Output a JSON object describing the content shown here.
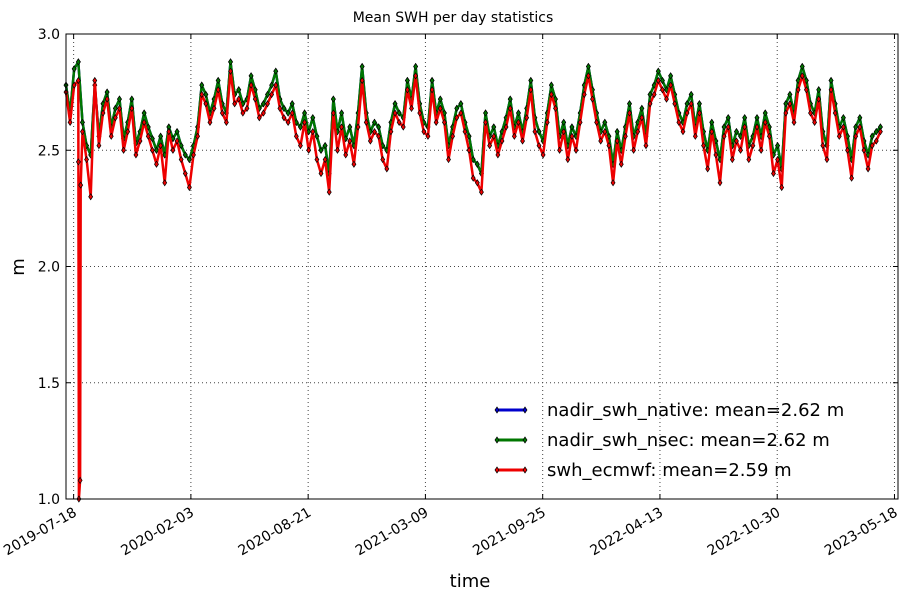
{
  "chart_data": {
    "type": "line",
    "title": "Mean SWH per day statistics",
    "xlabel": "time",
    "ylabel": "m",
    "x_range": [
      "2019-07-18",
      "2023-05-18"
    ],
    "ylim": [
      1.0,
      3.0
    ],
    "y_ticks": [
      "1.0",
      "1.5",
      "2.0",
      "2.5",
      "3.0"
    ],
    "x_ticks": [
      "2019-07-18",
      "2020-02-03",
      "2020-08-21",
      "2021-03-09",
      "2021-09-25",
      "2022-04-13",
      "2022-10-30",
      "2023-05-18"
    ],
    "grid": true,
    "legend_position": "lower-right",
    "x_start": "2019-07-05",
    "x_end": "2023-04-24",
    "series": [
      {
        "name": "nadir_swh_native: mean=2.62 m",
        "color": "#0000cc",
        "offset": 0.03,
        "values": [
          2.78,
          2.66,
          2.85,
          2.88,
          2.62,
          2.52,
          2.48,
          2.78,
          2.56,
          2.7,
          2.75,
          2.6,
          2.68,
          2.72,
          2.55,
          2.62,
          2.72,
          2.53,
          2.58,
          2.66,
          2.6,
          2.55,
          2.5,
          2.56,
          2.48,
          2.6,
          2.55,
          2.58,
          2.52,
          2.48,
          2.46,
          2.52,
          2.6,
          2.78,
          2.74,
          2.66,
          2.72,
          2.8,
          2.7,
          2.66,
          2.88,
          2.74,
          2.76,
          2.7,
          2.72,
          2.82,
          2.76,
          2.68,
          2.7,
          2.74,
          2.78,
          2.84,
          2.72,
          2.68,
          2.66,
          2.7,
          2.62,
          2.6,
          2.66,
          2.58,
          2.64,
          2.56,
          2.5,
          2.52,
          2.4,
          2.72,
          2.58,
          2.66,
          2.55,
          2.6,
          2.52,
          2.66,
          2.86,
          2.66,
          2.58,
          2.62,
          2.6,
          2.52,
          2.5,
          2.62,
          2.7,
          2.66,
          2.64,
          2.8,
          2.72,
          2.86,
          2.7,
          2.62,
          2.6,
          2.8,
          2.66,
          2.72,
          2.66,
          2.52,
          2.6,
          2.68,
          2.7,
          2.62,
          2.56,
          2.46,
          2.44,
          2.4,
          2.66,
          2.56,
          2.6,
          2.52,
          2.58,
          2.64,
          2.72,
          2.6,
          2.66,
          2.58,
          2.68,
          2.8,
          2.64,
          2.58,
          2.54,
          2.66,
          2.78,
          2.72,
          2.56,
          2.62,
          2.52,
          2.6,
          2.56,
          2.66,
          2.78,
          2.86,
          2.76,
          2.66,
          2.58,
          2.62,
          2.56,
          2.44,
          2.58,
          2.5,
          2.6,
          2.7,
          2.56,
          2.62,
          2.68,
          2.56,
          2.74,
          2.78,
          2.84,
          2.8,
          2.76,
          2.82,
          2.74,
          2.66,
          2.62,
          2.7,
          2.74,
          2.6,
          2.7,
          2.58,
          2.5,
          2.62,
          2.54,
          2.46,
          2.6,
          2.64,
          2.52,
          2.58,
          2.56,
          2.64,
          2.52,
          2.56,
          2.64,
          2.56,
          2.66,
          2.6,
          2.48,
          2.52,
          2.42,
          2.7,
          2.74,
          2.66,
          2.8,
          2.86,
          2.8,
          2.7,
          2.66,
          2.76,
          2.58,
          2.52,
          2.8,
          2.7,
          2.6,
          2.64,
          2.56,
          2.46,
          2.6,
          2.64,
          2.54,
          2.48,
          2.56,
          2.58,
          2.6
        ]
      },
      {
        "name": "nadir_swh_nsec: mean=2.62 m",
        "color": "#007700",
        "offset": 0.05,
        "values": [
          2.78,
          2.66,
          2.85,
          2.88,
          2.62,
          2.52,
          2.48,
          2.78,
          2.56,
          2.7,
          2.75,
          2.6,
          2.68,
          2.72,
          2.55,
          2.62,
          2.72,
          2.53,
          2.58,
          2.66,
          2.6,
          2.55,
          2.5,
          2.56,
          2.48,
          2.6,
          2.55,
          2.58,
          2.52,
          2.48,
          2.46,
          2.52,
          2.6,
          2.78,
          2.74,
          2.66,
          2.72,
          2.8,
          2.7,
          2.66,
          2.88,
          2.74,
          2.76,
          2.7,
          2.72,
          2.82,
          2.76,
          2.68,
          2.7,
          2.74,
          2.78,
          2.84,
          2.72,
          2.68,
          2.66,
          2.7,
          2.62,
          2.6,
          2.66,
          2.58,
          2.64,
          2.56,
          2.5,
          2.52,
          2.4,
          2.72,
          2.58,
          2.66,
          2.55,
          2.6,
          2.52,
          2.66,
          2.86,
          2.66,
          2.58,
          2.62,
          2.6,
          2.52,
          2.5,
          2.62,
          2.7,
          2.66,
          2.64,
          2.8,
          2.72,
          2.86,
          2.7,
          2.62,
          2.6,
          2.8,
          2.66,
          2.72,
          2.66,
          2.52,
          2.6,
          2.68,
          2.7,
          2.62,
          2.56,
          2.46,
          2.44,
          2.4,
          2.66,
          2.56,
          2.6,
          2.52,
          2.58,
          2.64,
          2.72,
          2.6,
          2.66,
          2.58,
          2.68,
          2.8,
          2.64,
          2.58,
          2.54,
          2.66,
          2.78,
          2.72,
          2.56,
          2.62,
          2.52,
          2.6,
          2.56,
          2.66,
          2.78,
          2.86,
          2.76,
          2.66,
          2.58,
          2.62,
          2.56,
          2.44,
          2.58,
          2.5,
          2.6,
          2.7,
          2.56,
          2.62,
          2.68,
          2.56,
          2.74,
          2.78,
          2.84,
          2.8,
          2.76,
          2.82,
          2.74,
          2.66,
          2.62,
          2.7,
          2.74,
          2.6,
          2.7,
          2.58,
          2.5,
          2.62,
          2.54,
          2.46,
          2.6,
          2.64,
          2.52,
          2.58,
          2.56,
          2.64,
          2.52,
          2.56,
          2.64,
          2.56,
          2.66,
          2.6,
          2.48,
          2.52,
          2.42,
          2.7,
          2.74,
          2.66,
          2.8,
          2.86,
          2.8,
          2.7,
          2.66,
          2.76,
          2.58,
          2.52,
          2.8,
          2.7,
          2.6,
          2.64,
          2.56,
          2.46,
          2.6,
          2.64,
          2.54,
          2.48,
          2.56,
          2.58,
          2.6
        ]
      },
      {
        "name": "swh_ecmwf: mean=2.59 m",
        "color": "#ee0000",
        "offset": 0.0,
        "values": [
          2.75,
          2.62,
          2.78,
          2.8,
          2.58,
          2.46,
          2.3,
          2.8,
          2.52,
          2.66,
          2.72,
          2.56,
          2.64,
          2.68,
          2.5,
          2.58,
          2.68,
          2.48,
          2.54,
          2.62,
          2.56,
          2.5,
          2.44,
          2.52,
          2.36,
          2.58,
          2.5,
          2.54,
          2.46,
          2.4,
          2.34,
          2.48,
          2.56,
          2.74,
          2.7,
          2.62,
          2.68,
          2.76,
          2.66,
          2.62,
          2.84,
          2.7,
          2.72,
          2.66,
          2.68,
          2.78,
          2.72,
          2.64,
          2.66,
          2.7,
          2.74,
          2.78,
          2.68,
          2.64,
          2.62,
          2.66,
          2.56,
          2.52,
          2.62,
          2.5,
          2.58,
          2.46,
          2.4,
          2.46,
          2.32,
          2.66,
          2.5,
          2.6,
          2.48,
          2.54,
          2.44,
          2.6,
          2.8,
          2.62,
          2.54,
          2.58,
          2.56,
          2.46,
          2.42,
          2.58,
          2.66,
          2.62,
          2.6,
          2.76,
          2.68,
          2.82,
          2.66,
          2.58,
          2.56,
          2.76,
          2.62,
          2.68,
          2.62,
          2.46,
          2.56,
          2.64,
          2.66,
          2.58,
          2.5,
          2.38,
          2.36,
          2.32,
          2.62,
          2.52,
          2.56,
          2.48,
          2.54,
          2.6,
          2.68,
          2.56,
          2.62,
          2.54,
          2.64,
          2.76,
          2.58,
          2.52,
          2.48,
          2.62,
          2.74,
          2.68,
          2.5,
          2.58,
          2.46,
          2.56,
          2.5,
          2.62,
          2.74,
          2.82,
          2.72,
          2.62,
          2.54,
          2.58,
          2.52,
          2.36,
          2.54,
          2.44,
          2.56,
          2.66,
          2.5,
          2.58,
          2.64,
          2.52,
          2.7,
          2.74,
          2.8,
          2.76,
          2.72,
          2.78,
          2.7,
          2.62,
          2.58,
          2.66,
          2.7,
          2.56,
          2.66,
          2.52,
          2.42,
          2.58,
          2.48,
          2.36,
          2.56,
          2.6,
          2.46,
          2.54,
          2.5,
          2.6,
          2.46,
          2.52,
          2.6,
          2.5,
          2.62,
          2.56,
          2.4,
          2.46,
          2.34,
          2.66,
          2.7,
          2.62,
          2.76,
          2.82,
          2.76,
          2.66,
          2.62,
          2.72,
          2.52,
          2.46,
          2.76,
          2.66,
          2.56,
          2.6,
          2.5,
          2.38,
          2.56,
          2.6,
          2.5,
          2.42,
          2.52,
          2.54,
          2.58
        ],
        "annotation_dip": {
          "at": "2019-07-27",
          "value": 1.0
        }
      }
    ]
  }
}
